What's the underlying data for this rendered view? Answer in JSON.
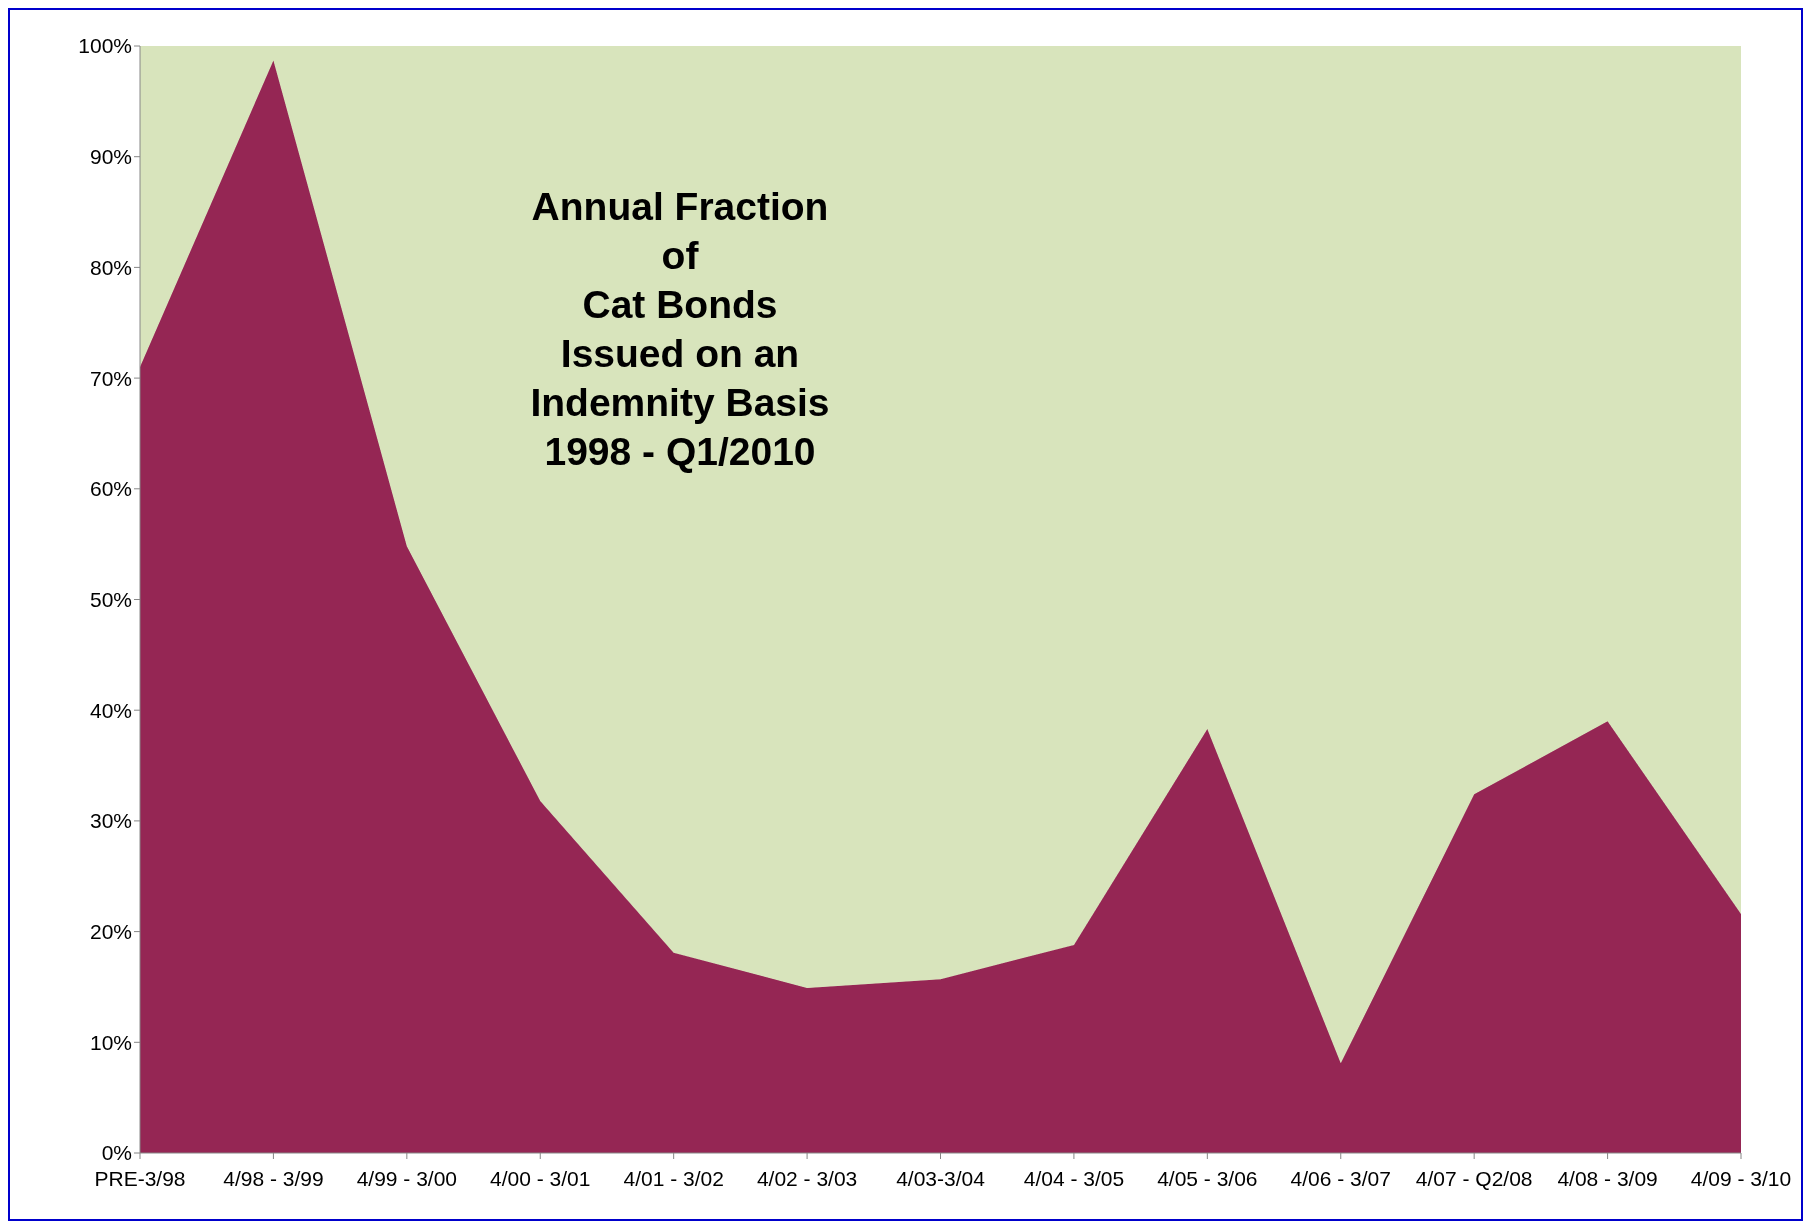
{
  "chart_data": {
    "type": "area",
    "stacked": true,
    "title": "Annual Fraction\nof\nCat Bonds\nIssued on an\nIndemnity Basis\n1998 - Q1/2010",
    "categories": [
      "PRE-3/98",
      "4/98 - 3/99",
      "4/99 - 3/00",
      "4/00 - 3/01",
      "4/01 - 3/02",
      "4/02 - 3/03",
      "4/03-3/04",
      "4/04 - 3/05",
      "4/05 - 3/06",
      "4/06 - 3/07",
      "4/07 - Q2/08",
      "4/08 - 3/09",
      "4/09 - 3/10"
    ],
    "series": [
      {
        "color": "#952654",
        "values": [
          71.0,
          98.7,
          54.8,
          31.8,
          18.1,
          14.9,
          15.7,
          18.8,
          38.3,
          8.1,
          32.4,
          39.0,
          21.6
        ]
      },
      {
        "color": "#d8e4bc",
        "values": [
          29.0,
          1.3,
          45.2,
          68.2,
          81.9,
          85.1,
          84.3,
          81.2,
          61.7,
          91.9,
          67.6,
          61.0,
          78.4
        ]
      }
    ],
    "ylim": [
      0,
      100
    ],
    "yticks": [
      {
        "value": 0,
        "label": "0%"
      },
      {
        "value": 10,
        "label": "10%"
      },
      {
        "value": 20,
        "label": "20%"
      },
      {
        "value": 30,
        "label": "30%"
      },
      {
        "value": 40,
        "label": "40%"
      },
      {
        "value": 50,
        "label": "50%"
      },
      {
        "value": 60,
        "label": "60%"
      },
      {
        "value": 70,
        "label": "70%"
      },
      {
        "value": 80,
        "label": "80%"
      },
      {
        "value": 90,
        "label": "90%"
      },
      {
        "value": 100,
        "label": "100%"
      }
    ]
  }
}
